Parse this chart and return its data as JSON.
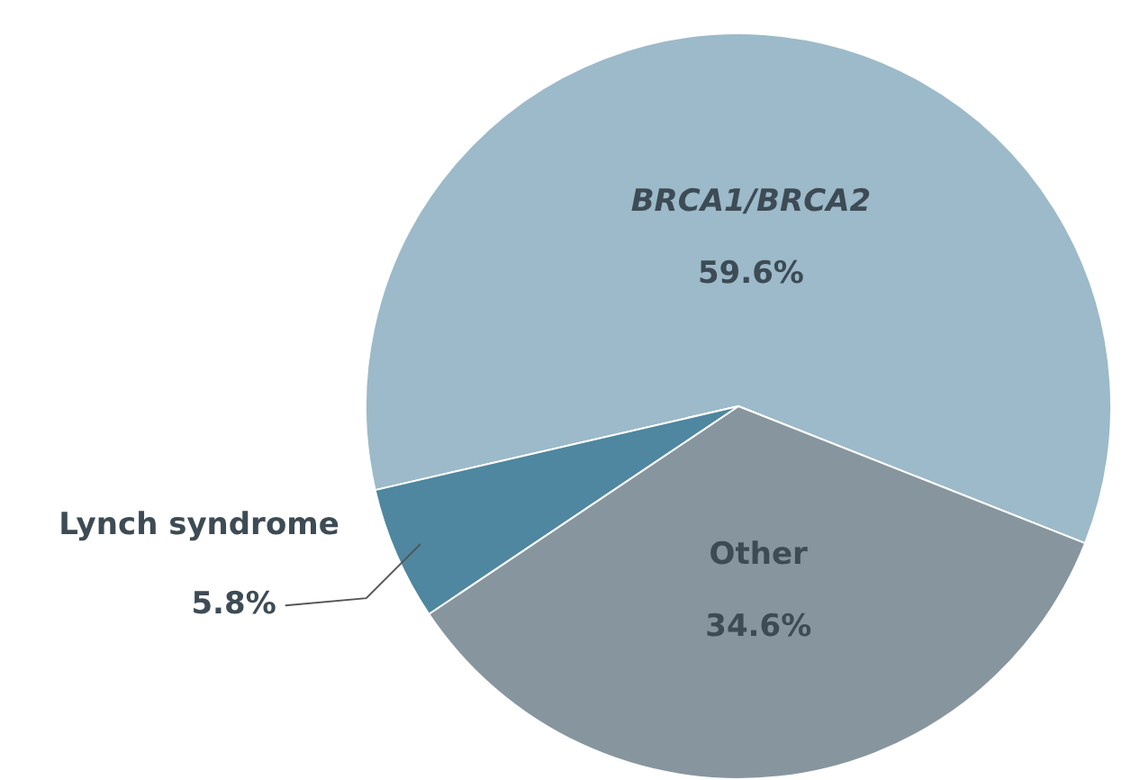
{
  "chart_data": {
    "type": "pie",
    "categories": [
      "BRCA1/BRCA2",
      "Other",
      "Lynch syndrome"
    ],
    "values": [
      59.6,
      34.6,
      5.8
    ],
    "value_labels": [
      "59.6%",
      "34.6%",
      "5.8%"
    ],
    "colors": [
      "#9cbac9",
      "#87959e",
      "#4e879f"
    ],
    "legend": false
  }
}
